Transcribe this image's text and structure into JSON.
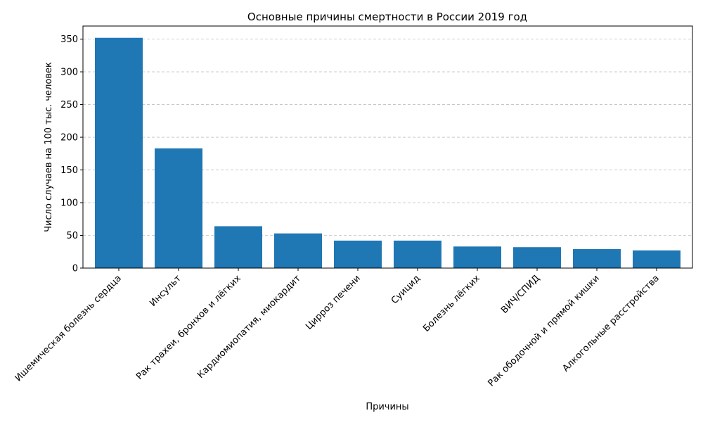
{
  "chart_data": {
    "type": "bar",
    "title": "Основные причины смертности в России 2019 год",
    "xlabel": "Причины",
    "ylabel": "Число случаев на 100 тыс. человек",
    "categories": [
      "Ишемическая болезнь сердца",
      "Инсульт",
      "Рак трахеи, бронхов и лёгких",
      "Кардиомиопатия, миокардит",
      "Цирроз печени",
      "Суицид",
      "Болезнь лёгких",
      "ВИЧ/СПИД",
      "Рак ободочной и прямой кишки",
      "Алкогольные расстройства"
    ],
    "values": [
      352,
      183,
      64,
      53,
      42,
      42,
      33,
      32,
      29,
      27
    ],
    "ylim": [
      0,
      370
    ],
    "yticks": [
      0,
      50,
      100,
      150,
      200,
      250,
      300,
      350
    ],
    "grid": "y-dashed",
    "bar_color": "#1f77b4",
    "grid_color": "#b0b0b0"
  }
}
